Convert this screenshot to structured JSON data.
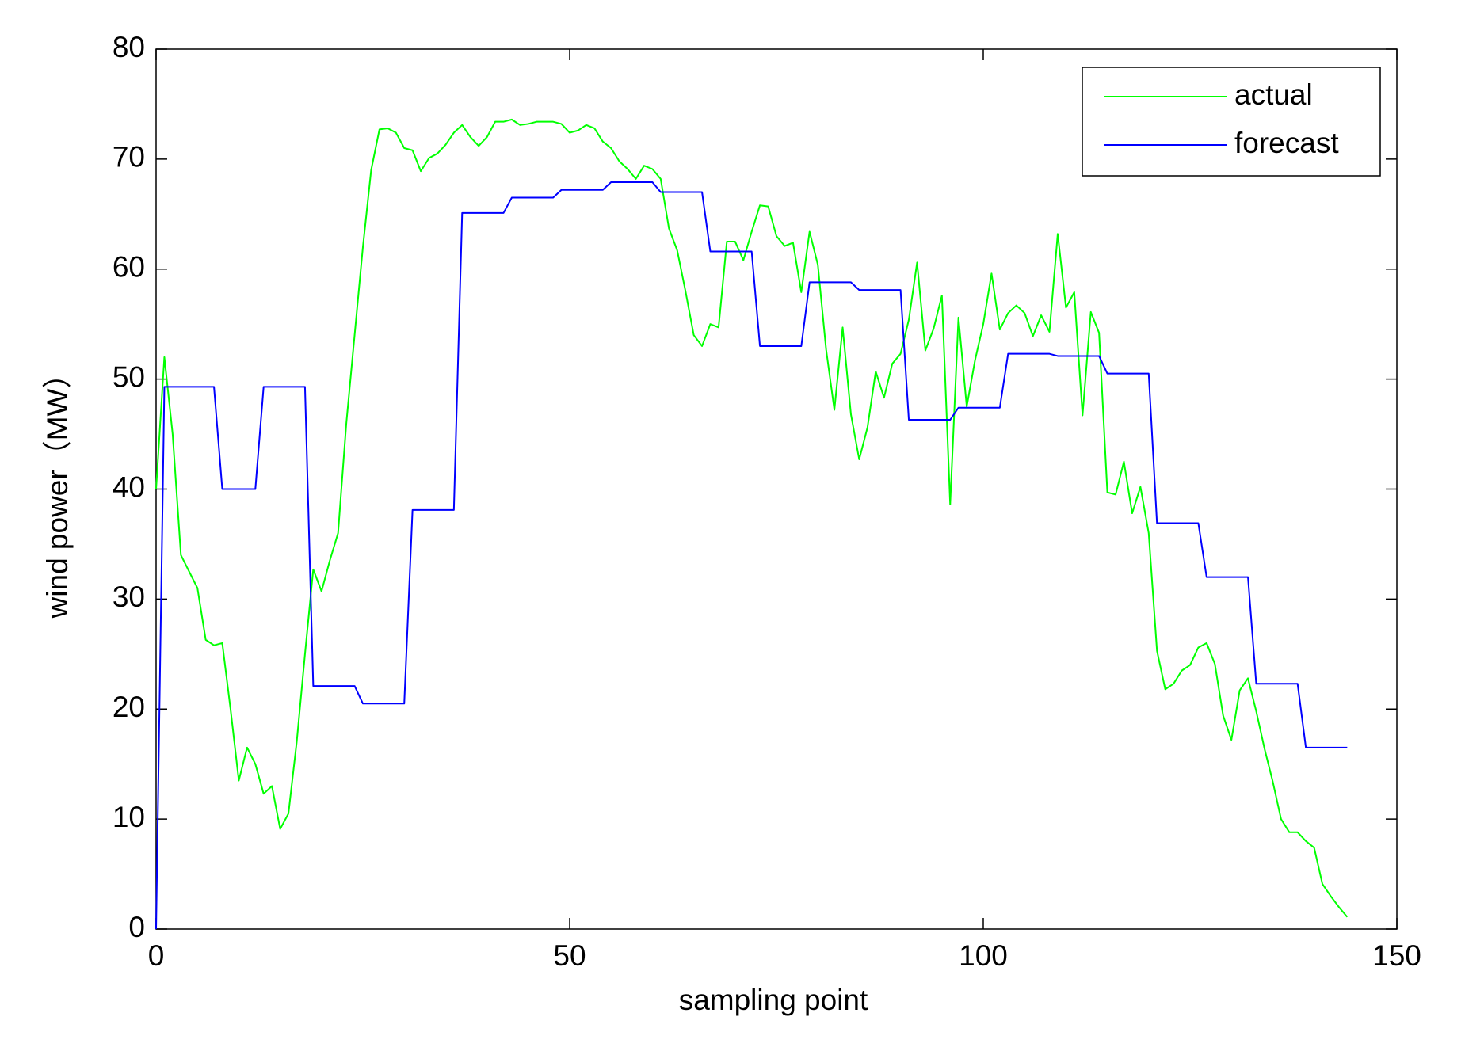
{
  "chart_data": {
    "type": "line",
    "xlabel": "sampling point",
    "ylabel": "wind power（MW）",
    "x": [
      0,
      1,
      2,
      3,
      4,
      5,
      6,
      7,
      8,
      9,
      10,
      11,
      12,
      13,
      14,
      15,
      16,
      17,
      18,
      19,
      20,
      21,
      22,
      23,
      24,
      25,
      26,
      27,
      28,
      29,
      30,
      31,
      32,
      33,
      34,
      35,
      36,
      37,
      38,
      39,
      40,
      41,
      42,
      43,
      44,
      45,
      46,
      47,
      48,
      49,
      50,
      51,
      52,
      53,
      54,
      55,
      56,
      57,
      58,
      59,
      60,
      61,
      62,
      63,
      64,
      65,
      66,
      67,
      68,
      69,
      70,
      71,
      72,
      73,
      74,
      75,
      76,
      77,
      78,
      79,
      80,
      81,
      82,
      83,
      84,
      85,
      86,
      87,
      88,
      89,
      90,
      91,
      92,
      93,
      94,
      95,
      96,
      97,
      98,
      99,
      100,
      101,
      102,
      103,
      104,
      105,
      106,
      107,
      108,
      109,
      110,
      111,
      112,
      113,
      114,
      115,
      116,
      117,
      118,
      119,
      120,
      121,
      122,
      123,
      124,
      125,
      126,
      127,
      128,
      129,
      130,
      131,
      132,
      133,
      134,
      135,
      136,
      137,
      138,
      139,
      140,
      141,
      142,
      143,
      144
    ],
    "series": [
      {
        "name": "actual",
        "color": "#00ff00",
        "values": [
          40,
          52,
          45,
          34,
          32.5,
          31,
          26.3,
          25.8,
          26,
          20,
          13.5,
          16.5,
          15,
          12.3,
          13,
          9.1,
          10.5,
          17,
          25,
          32.7,
          30.7,
          33.5,
          36,
          46,
          54,
          62,
          69,
          72.7,
          72.8,
          72.4,
          71,
          70.8,
          68.9,
          70.1,
          70.5,
          71.3,
          72.4,
          73.1,
          72,
          71.2,
          72,
          73.4,
          73.4,
          73.6,
          73.1,
          73.2,
          73.4,
          73.4,
          73.4,
          73.2,
          72.4,
          72.6,
          73.1,
          72.8,
          71.6,
          71,
          69.8,
          69.1,
          68.2,
          69.4,
          69.1,
          68.2,
          63.7,
          61.7,
          58,
          54,
          53,
          55,
          54.7,
          62.5,
          62.5,
          60.8,
          63.4,
          65.8,
          65.7,
          63,
          62.1,
          62.4,
          57.9,
          63.4,
          60.4,
          52.7,
          47.2,
          54.7,
          46.8,
          42.7,
          45.6,
          50.7,
          48.3,
          51.4,
          52.3,
          55.4,
          60.6,
          52.6,
          54.6,
          57.6,
          38.6,
          55.6,
          47.5,
          51.7,
          55,
          59.6,
          54.5,
          56,
          56.7,
          56,
          53.9,
          55.8,
          54.3,
          63.2,
          56.5,
          57.9,
          46.7,
          56.1,
          54.2,
          39.7,
          39.5,
          42.5,
          37.8,
          40.2,
          36,
          25.3,
          21.8,
          22.3,
          23.5,
          24,
          25.6,
          26,
          24.1,
          19.4,
          17.2,
          21.7,
          22.8,
          19.8,
          16.4,
          13.4,
          10,
          8.8,
          8.8,
          8,
          7.4,
          4.1,
          3,
          2,
          1.1
        ]
      },
      {
        "name": "forecast",
        "color": "#0000ff",
        "values": [
          0,
          49.3,
          49.3,
          49.3,
          49.3,
          49.3,
          49.3,
          49.3,
          40,
          40,
          40,
          40,
          40,
          49.3,
          49.3,
          49.3,
          49.3,
          49.3,
          49.3,
          22.1,
          22.1,
          22.1,
          22.1,
          22.1,
          22.1,
          20.5,
          20.5,
          20.5,
          20.5,
          20.5,
          20.5,
          38.1,
          38.1,
          38.1,
          38.1,
          38.1,
          38.1,
          65.1,
          65.1,
          65.1,
          65.1,
          65.1,
          65.1,
          66.5,
          66.5,
          66.5,
          66.5,
          66.5,
          66.5,
          67.2,
          67.2,
          67.2,
          67.2,
          67.2,
          67.2,
          67.9,
          67.9,
          67.9,
          67.9,
          67.9,
          67.9,
          67,
          67,
          67,
          67,
          67,
          67,
          61.6,
          61.6,
          61.6,
          61.6,
          61.6,
          61.6,
          53,
          53,
          53,
          53,
          53,
          53,
          58.8,
          58.8,
          58.8,
          58.8,
          58.8,
          58.8,
          58.1,
          58.1,
          58.1,
          58.1,
          58.1,
          58.1,
          46.3,
          46.3,
          46.3,
          46.3,
          46.3,
          46.3,
          47.4,
          47.4,
          47.4,
          47.4,
          47.4,
          47.4,
          52.3,
          52.3,
          52.3,
          52.3,
          52.3,
          52.3,
          52.1,
          52.1,
          52.1,
          52.1,
          52.1,
          52.1,
          50.5,
          50.5,
          50.5,
          50.5,
          50.5,
          50.5,
          36.9,
          36.9,
          36.9,
          36.9,
          36.9,
          36.9,
          32,
          32,
          32,
          32,
          32,
          32,
          22.3,
          22.3,
          22.3,
          22.3,
          22.3,
          22.3,
          16.5,
          16.5,
          16.5,
          16.5,
          16.5,
          16.5
        ]
      }
    ],
    "xlim": [
      0,
      150
    ],
    "xticks": [
      0,
      50,
      100,
      150
    ],
    "ylim": [
      0,
      80
    ],
    "yticks": [
      0,
      10,
      20,
      30,
      40,
      50,
      60,
      70,
      80
    ],
    "grid": false,
    "legend": "upper right"
  }
}
